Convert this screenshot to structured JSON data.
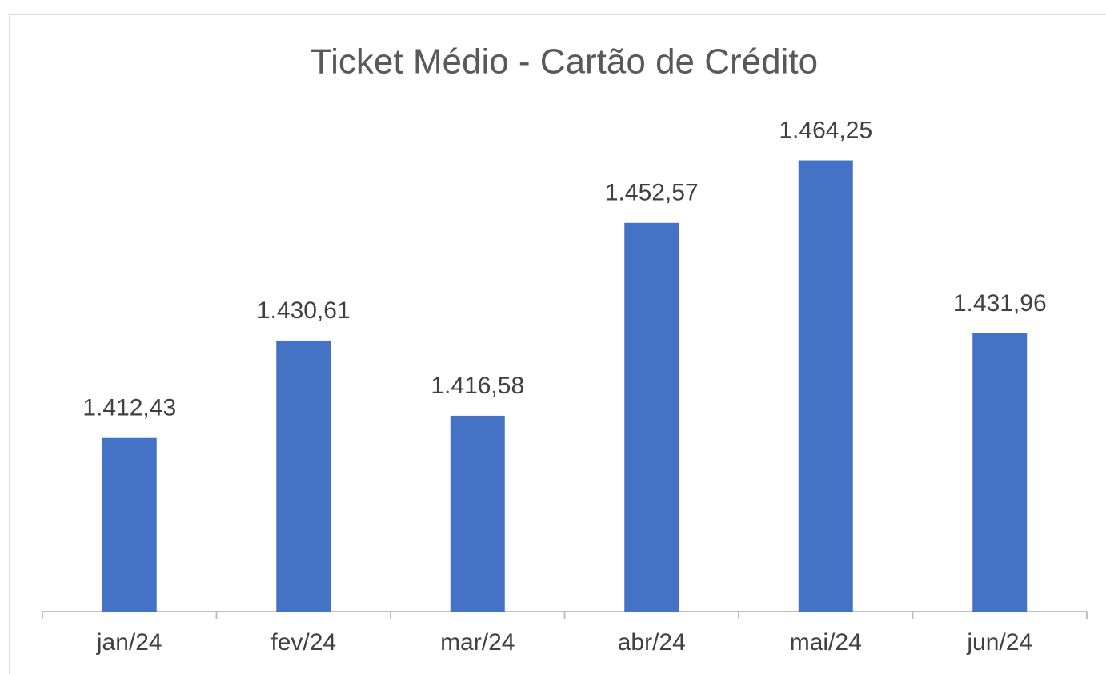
{
  "chart_data": {
    "type": "bar",
    "title": "Ticket Médio - Cartão de Crédito",
    "categories": [
      "jan/24",
      "fev/24",
      "mar/24",
      "abr/24",
      "mai/24",
      "jun/24"
    ],
    "values": [
      1412.43,
      1430.61,
      1416.58,
      1452.57,
      1464.25,
      1431.96
    ],
    "value_labels": [
      "1.412,43",
      "1.430,61",
      "1.416,58",
      "1.452,57",
      "1.464,25",
      "1.431,96"
    ],
    "color": "#4472c4",
    "ylim": [
      1380,
      1480
    ]
  }
}
